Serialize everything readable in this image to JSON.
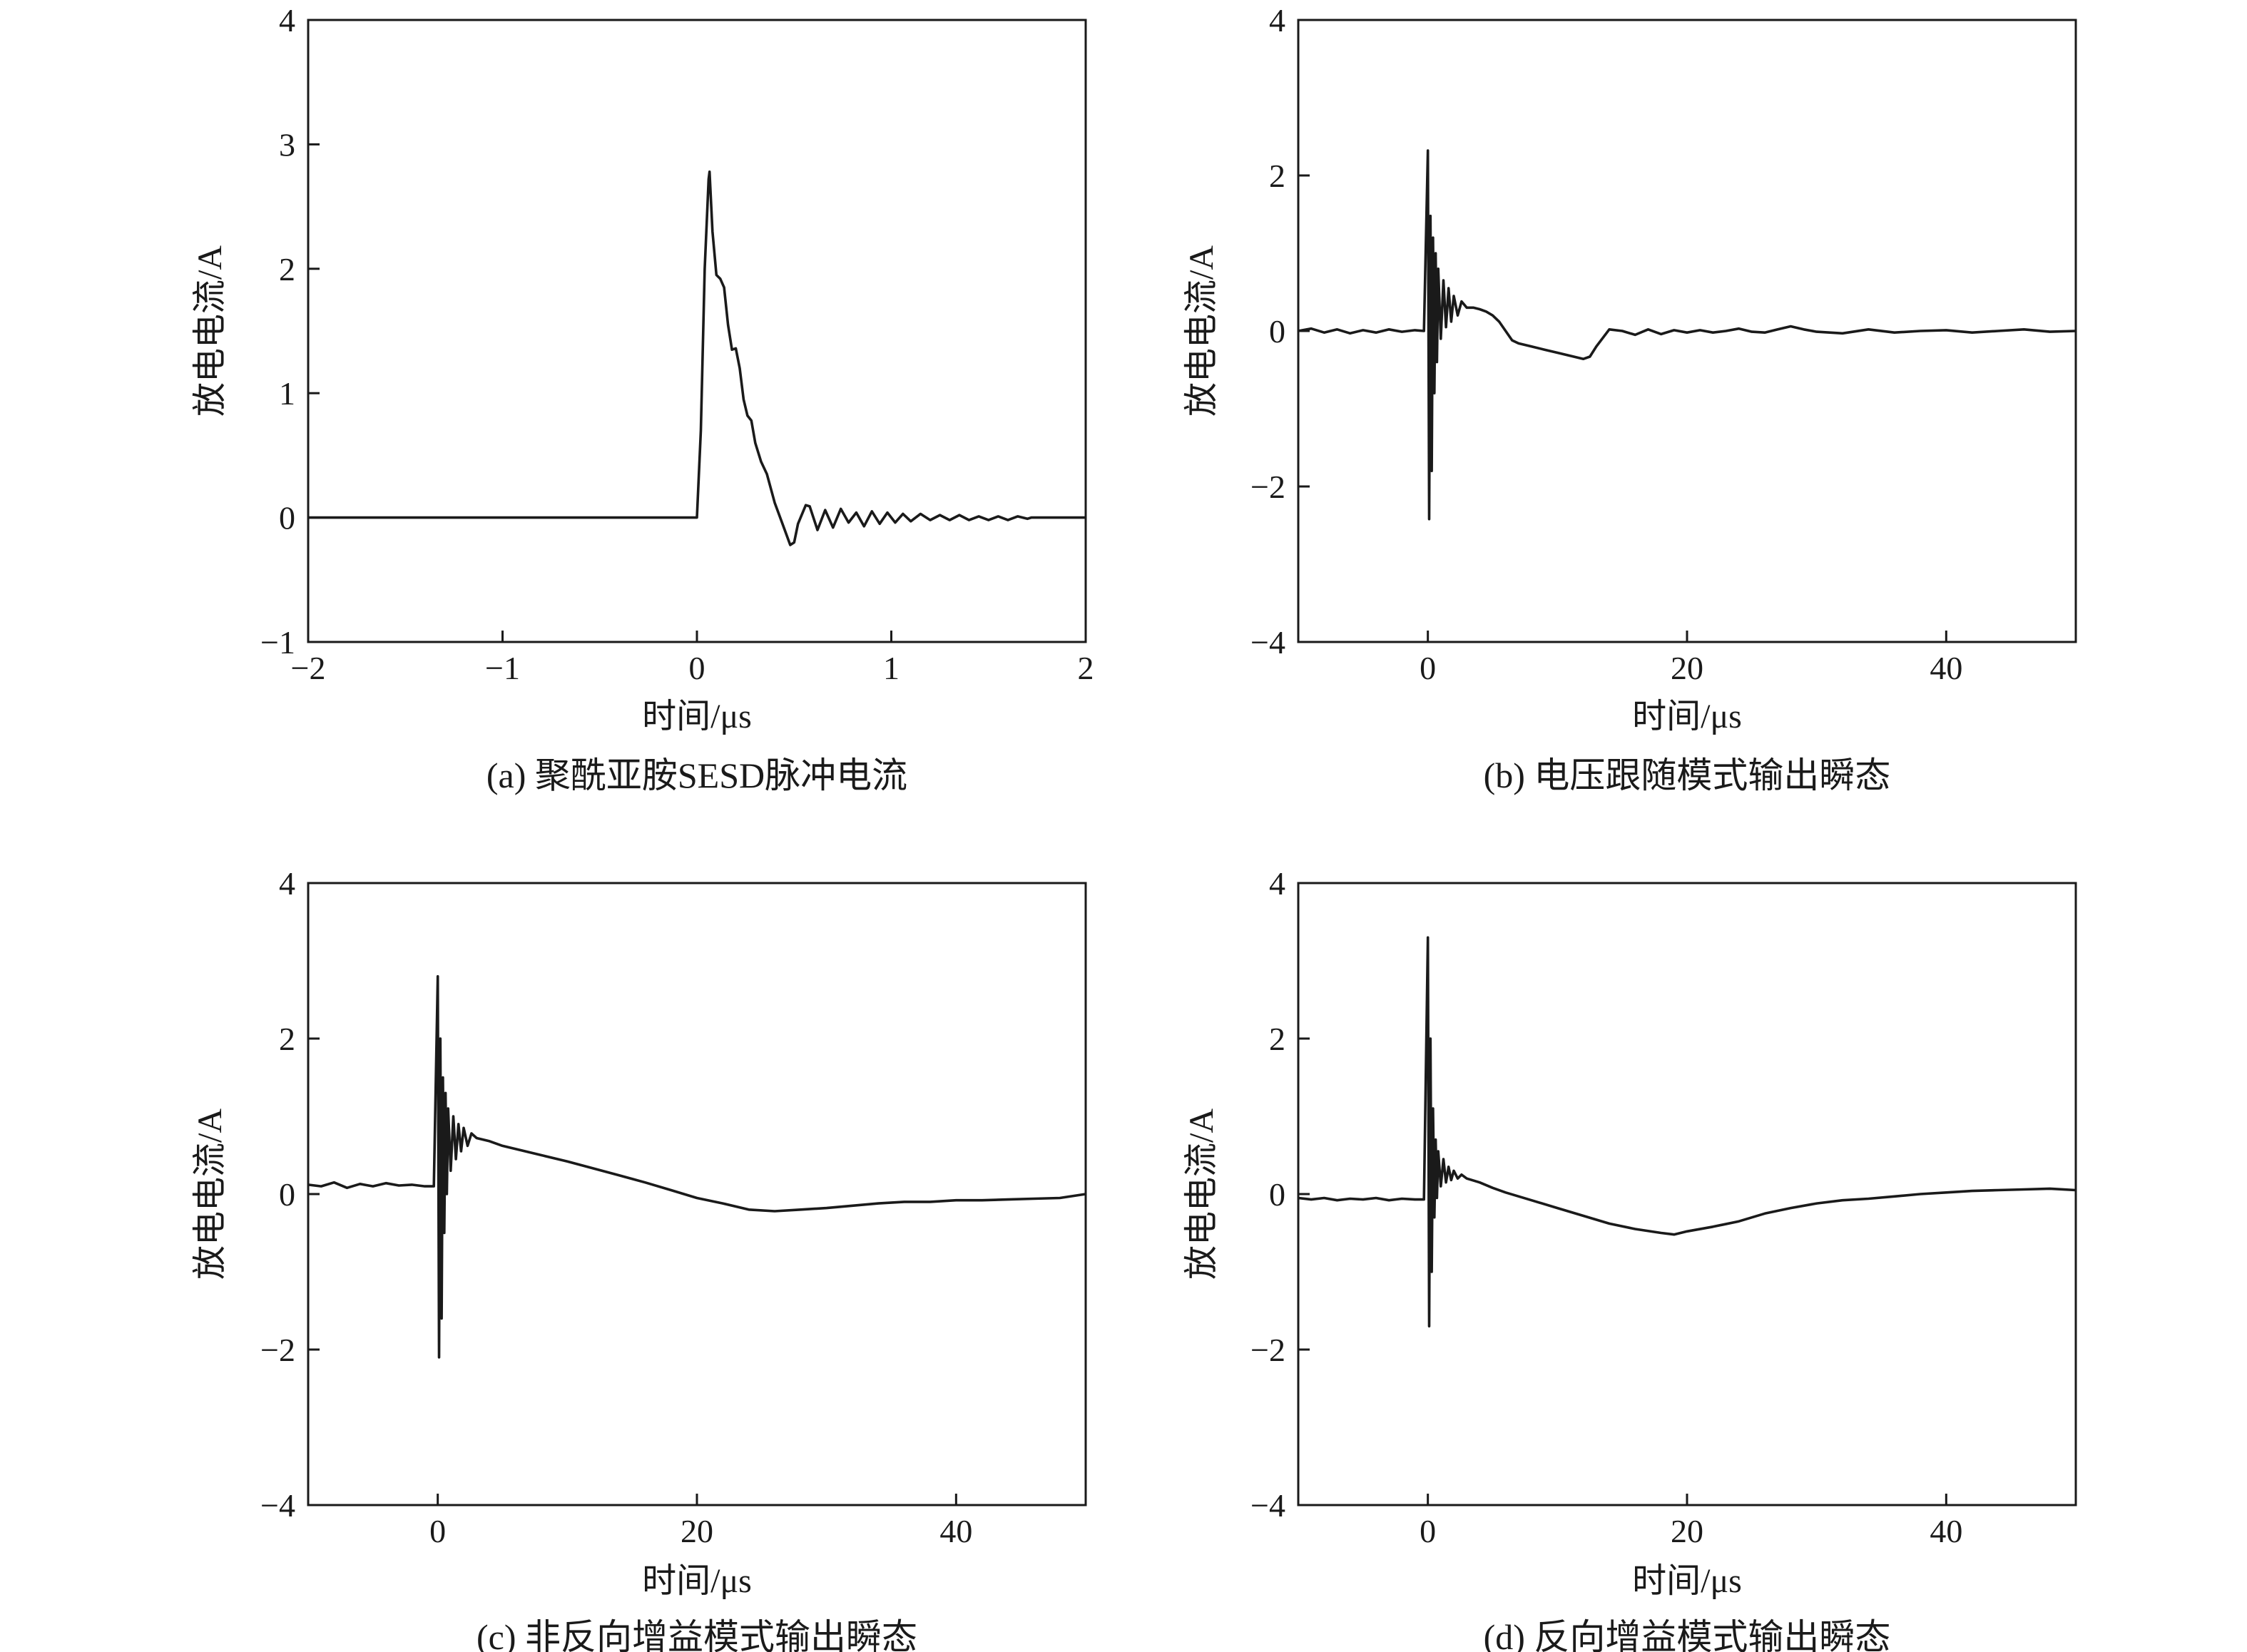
{
  "chart_data": [
    {
      "id": "a",
      "type": "line",
      "caption": "(a) 聚酰亚胺SESD脉冲电流",
      "xlabel": "时间/μs",
      "ylabel": "放电电流/A",
      "xlim": [
        -2,
        2
      ],
      "ylim": [
        -1,
        4
      ],
      "xticks": [
        -2,
        -1,
        0,
        1,
        2
      ],
      "xtick_labels": [
        "−2",
        "−1",
        "0",
        "1",
        "2"
      ],
      "yticks": [
        -1,
        0,
        1,
        2,
        3,
        4
      ],
      "ytick_labels": [
        "−1",
        "0",
        "1",
        "2",
        "3",
        "4"
      ],
      "series": [
        {
          "x": [
            -2,
            -0.6,
            0,
            0.02,
            0.04,
            0.06,
            0.065,
            0.08,
            0.1,
            0.12,
            0.14,
            0.16,
            0.18,
            0.2,
            0.22,
            0.24,
            0.26,
            0.28,
            0.3,
            0.33,
            0.36,
            0.4,
            0.44,
            0.48,
            0.5,
            0.52,
            0.56,
            0.58,
            0.62,
            0.66,
            0.7,
            0.74,
            0.78,
            0.82,
            0.86,
            0.9,
            0.94,
            0.98,
            1.02,
            1.06,
            1.1,
            1.15,
            1.2,
            1.25,
            1.3,
            1.35,
            1.4,
            1.45,
            1.5,
            1.55,
            1.6,
            1.65,
            1.7,
            1.72,
            2
          ],
          "y": [
            0,
            0,
            0,
            0.7,
            2.0,
            2.72,
            2.78,
            2.3,
            1.95,
            1.92,
            1.85,
            1.55,
            1.35,
            1.36,
            1.2,
            0.95,
            0.82,
            0.78,
            0.6,
            0.45,
            0.35,
            0.12,
            -0.05,
            -0.22,
            -0.2,
            -0.05,
            0.1,
            0.09,
            -0.1,
            0.06,
            -0.08,
            0.07,
            -0.04,
            0.04,
            -0.07,
            0.05,
            -0.05,
            0.04,
            -0.04,
            0.03,
            -0.03,
            0.03,
            -0.02,
            0.02,
            -0.02,
            0.02,
            -0.02,
            0.01,
            -0.02,
            0.01,
            -0.02,
            0.01,
            -0.01,
            0,
            0
          ]
        }
      ]
    },
    {
      "id": "b",
      "type": "line",
      "caption": "(b) 电压跟随模式输出瞬态",
      "xlabel": "时间/μs",
      "ylabel": "放电电流/A",
      "xlim": [
        -10,
        50
      ],
      "ylim": [
        -4,
        4
      ],
      "xticks": [
        0,
        20,
        40
      ],
      "xtick_labels": [
        "0",
        "20",
        "40"
      ],
      "yticks": [
        -4,
        -2,
        0,
        2,
        4
      ],
      "ytick_labels": [
        "−4",
        "−2",
        "0",
        "2",
        "4"
      ],
      "series": [
        {
          "x": [
            -10,
            -9,
            -8,
            -7,
            -6,
            -5,
            -4,
            -3,
            -2,
            -1,
            -0.3,
            0,
            0.1,
            0.2,
            0.3,
            0.4,
            0.5,
            0.6,
            0.7,
            0.8,
            1.0,
            1.2,
            1.4,
            1.6,
            1.8,
            2.0,
            2.3,
            2.6,
            3.0,
            3.5,
            4.0,
            4.5,
            5.0,
            5.5,
            6.0,
            6.5,
            7.0,
            8,
            9,
            10,
            11,
            12,
            12.5,
            13,
            14,
            15,
            16,
            17,
            18,
            19,
            20,
            21,
            22,
            23,
            24,
            25,
            26,
            27,
            28,
            29,
            30,
            32,
            34,
            36,
            38,
            40,
            42,
            44,
            46,
            48,
            50
          ],
          "y": [
            0,
            0.03,
            -0.02,
            0.02,
            -0.03,
            0.01,
            -0.02,
            0.02,
            -0.01,
            0.01,
            0,
            2.32,
            -2.42,
            1.48,
            -1.8,
            1.2,
            -0.8,
            1.0,
            -0.4,
            0.8,
            -0.1,
            0.65,
            0.05,
            0.55,
            0.12,
            0.45,
            0.2,
            0.38,
            0.3,
            0.3,
            0.28,
            0.25,
            0.2,
            0.12,
            0.0,
            -0.12,
            -0.16,
            -0.2,
            -0.24,
            -0.28,
            -0.32,
            -0.36,
            -0.33,
            -0.2,
            0.02,
            0.0,
            -0.05,
            0.02,
            -0.04,
            0.01,
            -0.02,
            0.01,
            -0.02,
            0.0,
            0.03,
            -0.01,
            -0.02,
            0.02,
            0.06,
            0.02,
            -0.01,
            -0.03,
            0.02,
            -0.02,
            0.0,
            0.01,
            -0.02,
            0.0,
            0.02,
            -0.01,
            0.0
          ]
        }
      ]
    },
    {
      "id": "c",
      "type": "line",
      "caption": "(c) 非反向增益模式输出瞬态",
      "xlabel": "时间/μs",
      "ylabel": "放电电流/A",
      "xlim": [
        -10,
        50
      ],
      "ylim": [
        -4,
        4
      ],
      "xticks": [
        0,
        20,
        40
      ],
      "xtick_labels": [
        "0",
        "20",
        "40"
      ],
      "yticks": [
        -4,
        -2,
        0,
        2,
        4
      ],
      "ytick_labels": [
        "−4",
        "−2",
        "0",
        "2",
        "4"
      ],
      "series": [
        {
          "x": [
            -10,
            -9,
            -8,
            -7,
            -6,
            -5,
            -4,
            -3,
            -2,
            -1,
            -0.3,
            0,
            0.1,
            0.2,
            0.3,
            0.4,
            0.5,
            0.6,
            0.7,
            0.8,
            1.0,
            1.2,
            1.4,
            1.6,
            1.8,
            2.0,
            2.3,
            2.6,
            3.0,
            4,
            5,
            6,
            8,
            10,
            12,
            14,
            16,
            18,
            20,
            22,
            24,
            26,
            28,
            30,
            32,
            34,
            36,
            38,
            40,
            42,
            44,
            46,
            48,
            50
          ],
          "y": [
            0.12,
            0.1,
            0.15,
            0.08,
            0.13,
            0.1,
            0.14,
            0.11,
            0.12,
            0.1,
            0.1,
            2.8,
            -2.1,
            2.0,
            -1.6,
            1.5,
            -0.5,
            1.3,
            0.0,
            1.1,
            0.3,
            1.0,
            0.45,
            0.9,
            0.55,
            0.85,
            0.62,
            0.78,
            0.72,
            0.68,
            0.62,
            0.58,
            0.5,
            0.42,
            0.33,
            0.24,
            0.15,
            0.05,
            -0.05,
            -0.12,
            -0.2,
            -0.22,
            -0.2,
            -0.18,
            -0.15,
            -0.12,
            -0.1,
            -0.1,
            -0.08,
            -0.08,
            -0.07,
            -0.06,
            -0.05,
            0.0
          ]
        }
      ]
    },
    {
      "id": "d",
      "type": "line",
      "caption": "(d) 反向增益模式输出瞬态",
      "xlabel": "时间/μs",
      "ylabel": "放电电流/A",
      "xlim": [
        -10,
        50
      ],
      "ylim": [
        -4,
        4
      ],
      "xticks": [
        0,
        20,
        40
      ],
      "xtick_labels": [
        "0",
        "20",
        "40"
      ],
      "yticks": [
        -4,
        -2,
        0,
        2,
        4
      ],
      "ytick_labels": [
        "−4",
        "−2",
        "0",
        "2",
        "4"
      ],
      "series": [
        {
          "x": [
            -10,
            -9,
            -8,
            -7,
            -6,
            -5,
            -4,
            -3,
            -2,
            -1,
            -0.3,
            0,
            0.1,
            0.2,
            0.3,
            0.4,
            0.5,
            0.6,
            0.7,
            0.8,
            1.0,
            1.2,
            1.4,
            1.6,
            1.8,
            2.0,
            2.3,
            2.6,
            3.0,
            4,
            5,
            6,
            8,
            10,
            12,
            14,
            16,
            18,
            19,
            20,
            22,
            24,
            26,
            28,
            30,
            32,
            34,
            36,
            38,
            40,
            42,
            44,
            46,
            48,
            50
          ],
          "y": [
            -0.05,
            -0.07,
            -0.05,
            -0.08,
            -0.06,
            -0.07,
            -0.05,
            -0.08,
            -0.06,
            -0.07,
            -0.07,
            3.3,
            -1.7,
            2.0,
            -1.0,
            1.1,
            -0.3,
            0.7,
            -0.05,
            0.55,
            0.1,
            0.45,
            0.15,
            0.35,
            0.18,
            0.3,
            0.2,
            0.25,
            0.2,
            0.15,
            0.08,
            0.02,
            -0.08,
            -0.18,
            -0.28,
            -0.38,
            -0.45,
            -0.5,
            -0.52,
            -0.48,
            -0.42,
            -0.35,
            -0.25,
            -0.18,
            -0.12,
            -0.08,
            -0.06,
            -0.03,
            0.0,
            0.02,
            0.04,
            0.05,
            0.06,
            0.07,
            0.05
          ]
        }
      ]
    }
  ]
}
